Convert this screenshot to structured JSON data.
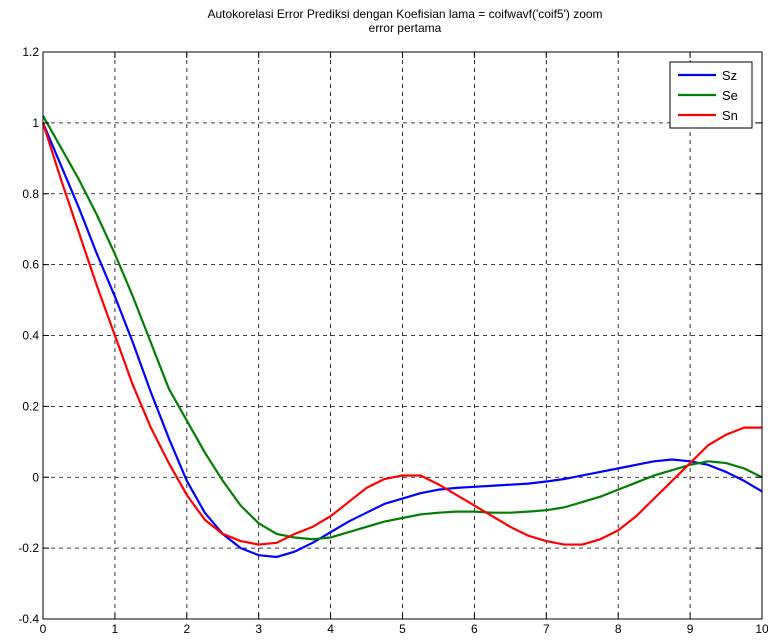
{
  "chart_data": {
    "type": "line",
    "title": "Autokorelasi Error Prediksi dengan Koefisian lama = coifwavf('coif5') zoom",
    "subtitle": "error pertama",
    "xlabel": "",
    "ylabel": "",
    "xlim": [
      0,
      10
    ],
    "ylim": [
      -0.4,
      1.2
    ],
    "grid": true,
    "legend_position": "top-right",
    "x_ticks": [
      "0",
      "1",
      "2",
      "3",
      "4",
      "5",
      "6",
      "7",
      "8",
      "9",
      "10"
    ],
    "y_ticks": [
      "-0.4",
      "-0.2",
      "0",
      "0.2",
      "0.4",
      "0.6",
      "0.8",
      "1",
      "1.2"
    ],
    "x": [
      0,
      0.25,
      0.5,
      0.75,
      1,
      1.25,
      1.5,
      1.75,
      2,
      2.25,
      2.5,
      2.75,
      3,
      3.25,
      3.5,
      3.75,
      4,
      4.25,
      4.5,
      4.75,
      5,
      5.25,
      5.5,
      5.75,
      6,
      6.25,
      6.5,
      6.75,
      7,
      7.25,
      7.5,
      7.75,
      8,
      8.25,
      8.5,
      8.75,
      9,
      9.25,
      9.5,
      9.75,
      10
    ],
    "series": [
      {
        "name": "Sz",
        "color": "#0000ff",
        "values": [
          1.0,
          0.88,
          0.76,
          0.63,
          0.51,
          0.38,
          0.24,
          0.11,
          -0.01,
          -0.1,
          -0.16,
          -0.2,
          -0.22,
          -0.225,
          -0.21,
          -0.185,
          -0.155,
          -0.125,
          -0.1,
          -0.075,
          -0.06,
          -0.045,
          -0.035,
          -0.03,
          -0.027,
          -0.024,
          -0.021,
          -0.018,
          -0.012,
          -0.005,
          0.005,
          0.015,
          0.025,
          0.035,
          0.045,
          0.05,
          0.045,
          0.035,
          0.015,
          -0.01,
          -0.04
        ]
      },
      {
        "name": "Se",
        "color": "#008000",
        "values": [
          1.02,
          0.93,
          0.84,
          0.74,
          0.63,
          0.51,
          0.38,
          0.25,
          0.16,
          0.07,
          -0.01,
          -0.08,
          -0.13,
          -0.16,
          -0.17,
          -0.175,
          -0.17,
          -0.155,
          -0.14,
          -0.125,
          -0.115,
          -0.105,
          -0.1,
          -0.097,
          -0.097,
          -0.1,
          -0.1,
          -0.097,
          -0.093,
          -0.085,
          -0.07,
          -0.055,
          -0.035,
          -0.015,
          0.005,
          0.02,
          0.035,
          0.045,
          0.04,
          0.025,
          0.0
        ]
      },
      {
        "name": "Sn",
        "color": "#ff0000",
        "values": [
          1.0,
          0.84,
          0.69,
          0.54,
          0.4,
          0.26,
          0.14,
          0.04,
          -0.05,
          -0.12,
          -0.16,
          -0.18,
          -0.19,
          -0.185,
          -0.16,
          -0.14,
          -0.11,
          -0.07,
          -0.03,
          -0.005,
          0.005,
          0.005,
          -0.02,
          -0.05,
          -0.08,
          -0.11,
          -0.14,
          -0.165,
          -0.18,
          -0.19,
          -0.19,
          -0.175,
          -0.15,
          -0.11,
          -0.06,
          -0.01,
          0.04,
          0.09,
          0.12,
          0.14,
          0.14
        ]
      }
    ]
  }
}
